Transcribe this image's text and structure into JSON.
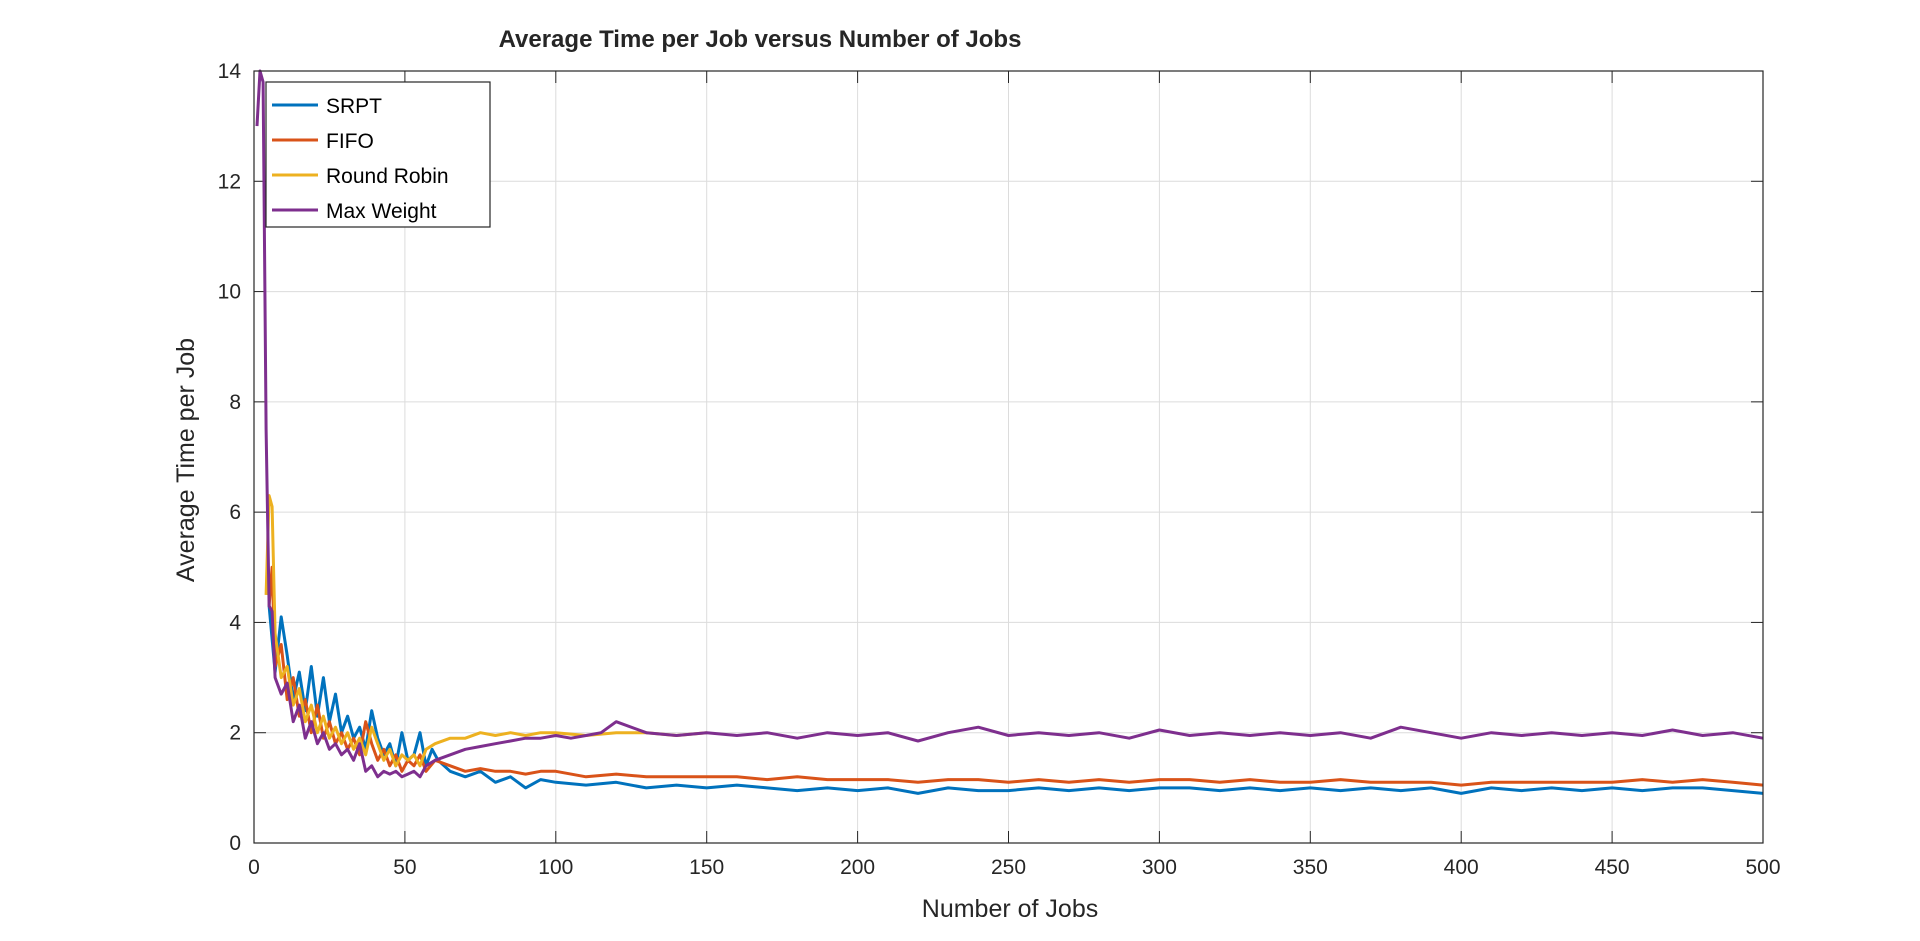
{
  "chart_data": {
    "type": "line",
    "title": "Average Time per Job versus Number of Jobs",
    "xlabel": "Number of Jobs",
    "ylabel": "Average Time per Job",
    "xlim": [
      0,
      500
    ],
    "ylim": [
      0,
      14
    ],
    "xticks": [
      0,
      50,
      100,
      150,
      200,
      250,
      300,
      350,
      400,
      450,
      500
    ],
    "yticks": [
      0,
      2,
      4,
      6,
      8,
      10,
      12,
      14
    ],
    "grid": true,
    "legend_position": "top-left",
    "series": [
      {
        "name": "SRPT",
        "color": "#0072BD",
        "x": [
          5,
          7,
          9,
          11,
          13,
          15,
          17,
          19,
          21,
          23,
          25,
          27,
          29,
          31,
          33,
          35,
          37,
          39,
          41,
          43,
          45,
          47,
          49,
          51,
          53,
          55,
          57,
          59,
          61,
          65,
          70,
          75,
          80,
          85,
          90,
          95,
          100,
          110,
          120,
          130,
          140,
          150,
          160,
          170,
          180,
          190,
          200,
          210,
          220,
          230,
          240,
          250,
          260,
          270,
          280,
          290,
          300,
          310,
          320,
          330,
          340,
          350,
          360,
          370,
          380,
          390,
          400,
          410,
          420,
          430,
          440,
          450,
          460,
          470,
          480,
          490,
          500
        ],
        "values": [
          4.3,
          3.1,
          4.1,
          3.4,
          2.6,
          3.1,
          2.4,
          3.2,
          2.3,
          3.0,
          2.2,
          2.7,
          2.0,
          2.3,
          1.9,
          2.1,
          1.7,
          2.4,
          1.9,
          1.6,
          1.8,
          1.4,
          2.0,
          1.5,
          1.6,
          2.0,
          1.4,
          1.7,
          1.5,
          1.3,
          1.2,
          1.3,
          1.1,
          1.2,
          1.0,
          1.15,
          1.1,
          1.05,
          1.1,
          1.0,
          1.05,
          1.0,
          1.05,
          1.0,
          0.95,
          1.0,
          0.95,
          1.0,
          0.9,
          1.0,
          0.95,
          0.95,
          1.0,
          0.95,
          1.0,
          0.95,
          1.0,
          1.0,
          0.95,
          1.0,
          0.95,
          1.0,
          0.95,
          1.0,
          0.95,
          1.0,
          0.9,
          1.0,
          0.95,
          1.0,
          0.95,
          1.0,
          0.95,
          1.0,
          1.0,
          0.95,
          0.9
        ]
      },
      {
        "name": "FIFO",
        "color": "#D95319",
        "x": [
          5,
          6,
          7,
          9,
          11,
          13,
          15,
          17,
          19,
          21,
          23,
          25,
          27,
          29,
          31,
          33,
          35,
          37,
          39,
          41,
          43,
          45,
          47,
          49,
          51,
          53,
          55,
          57,
          60,
          65,
          70,
          75,
          80,
          85,
          90,
          95,
          100,
          110,
          120,
          130,
          140,
          150,
          160,
          170,
          180,
          190,
          200,
          210,
          220,
          230,
          240,
          250,
          260,
          270,
          280,
          290,
          300,
          310,
          320,
          330,
          340,
          350,
          360,
          370,
          380,
          390,
          400,
          410,
          420,
          430,
          440,
          450,
          460,
          470,
          480,
          490,
          500
        ],
        "values": [
          4.3,
          5.0,
          3.2,
          3.6,
          2.6,
          3.0,
          2.3,
          2.6,
          2.0,
          2.5,
          1.9,
          2.2,
          1.8,
          2.0,
          1.7,
          1.9,
          1.6,
          2.2,
          1.8,
          1.5,
          1.7,
          1.4,
          1.6,
          1.3,
          1.5,
          1.4,
          1.6,
          1.3,
          1.5,
          1.4,
          1.3,
          1.35,
          1.3,
          1.3,
          1.25,
          1.3,
          1.3,
          1.2,
          1.25,
          1.2,
          1.2,
          1.2,
          1.2,
          1.15,
          1.2,
          1.15,
          1.15,
          1.15,
          1.1,
          1.15,
          1.15,
          1.1,
          1.15,
          1.1,
          1.15,
          1.1,
          1.15,
          1.15,
          1.1,
          1.15,
          1.1,
          1.1,
          1.15,
          1.1,
          1.1,
          1.1,
          1.05,
          1.1,
          1.1,
          1.1,
          1.1,
          1.1,
          1.15,
          1.1,
          1.15,
          1.1,
          1.05
        ]
      },
      {
        "name": "Round Robin",
        "color": "#EDB120",
        "x": [
          4,
          5,
          6,
          7,
          9,
          11,
          13,
          15,
          17,
          19,
          21,
          23,
          25,
          27,
          29,
          31,
          33,
          35,
          37,
          39,
          41,
          43,
          45,
          47,
          49,
          51,
          53,
          55,
          57,
          60,
          65,
          70,
          75,
          80,
          85,
          90,
          95,
          100,
          110,
          120,
          130,
          140,
          150
        ],
        "values": [
          4.5,
          6.3,
          6.1,
          3.8,
          3.0,
          3.2,
          2.5,
          2.8,
          2.2,
          2.5,
          2.0,
          2.3,
          1.9,
          2.1,
          1.8,
          2.0,
          1.7,
          1.9,
          1.6,
          2.1,
          1.8,
          1.5,
          1.7,
          1.4,
          1.6,
          1.5,
          1.6,
          1.4,
          1.7,
          1.8,
          1.9,
          1.9,
          2.0,
          1.95,
          2.0,
          1.95,
          2.0,
          2.0,
          1.95,
          2.0,
          2.0,
          1.95,
          2.0
        ]
      },
      {
        "name": "Max Weight",
        "color": "#7E2F8E",
        "x": [
          1,
          2,
          3,
          4,
          5,
          6,
          7,
          9,
          11,
          13,
          15,
          17,
          19,
          21,
          23,
          25,
          27,
          29,
          31,
          33,
          35,
          37,
          39,
          41,
          43,
          45,
          47,
          49,
          51,
          53,
          55,
          57,
          60,
          65,
          70,
          75,
          80,
          85,
          90,
          95,
          100,
          105,
          110,
          115,
          120,
          130,
          140,
          150,
          160,
          170,
          180,
          190,
          200,
          210,
          220,
          230,
          240,
          250,
          260,
          270,
          280,
          290,
          300,
          310,
          320,
          330,
          340,
          350,
          360,
          370,
          380,
          390,
          400,
          410,
          420,
          430,
          440,
          450,
          460,
          470,
          480,
          490,
          500
        ],
        "values": [
          13.0,
          14.0,
          13.8,
          7.5,
          4.3,
          4.2,
          3.0,
          2.7,
          2.9,
          2.2,
          2.5,
          1.9,
          2.2,
          1.8,
          2.0,
          1.7,
          1.8,
          1.6,
          1.7,
          1.5,
          1.8,
          1.3,
          1.4,
          1.2,
          1.3,
          1.25,
          1.3,
          1.2,
          1.25,
          1.3,
          1.2,
          1.4,
          1.5,
          1.6,
          1.7,
          1.75,
          1.8,
          1.85,
          1.9,
          1.9,
          1.95,
          1.9,
          1.95,
          2.0,
          2.2,
          2.0,
          1.95,
          2.0,
          1.95,
          2.0,
          1.9,
          2.0,
          1.95,
          2.0,
          1.85,
          2.0,
          2.1,
          1.95,
          2.0,
          1.95,
          2.0,
          1.9,
          2.05,
          1.95,
          2.0,
          1.95,
          2.0,
          1.95,
          2.0,
          1.9,
          2.1,
          2.0,
          1.9,
          2.0,
          1.95,
          2.0,
          1.95,
          2.0,
          1.95,
          2.05,
          1.95,
          2.0,
          1.9
        ]
      }
    ]
  }
}
